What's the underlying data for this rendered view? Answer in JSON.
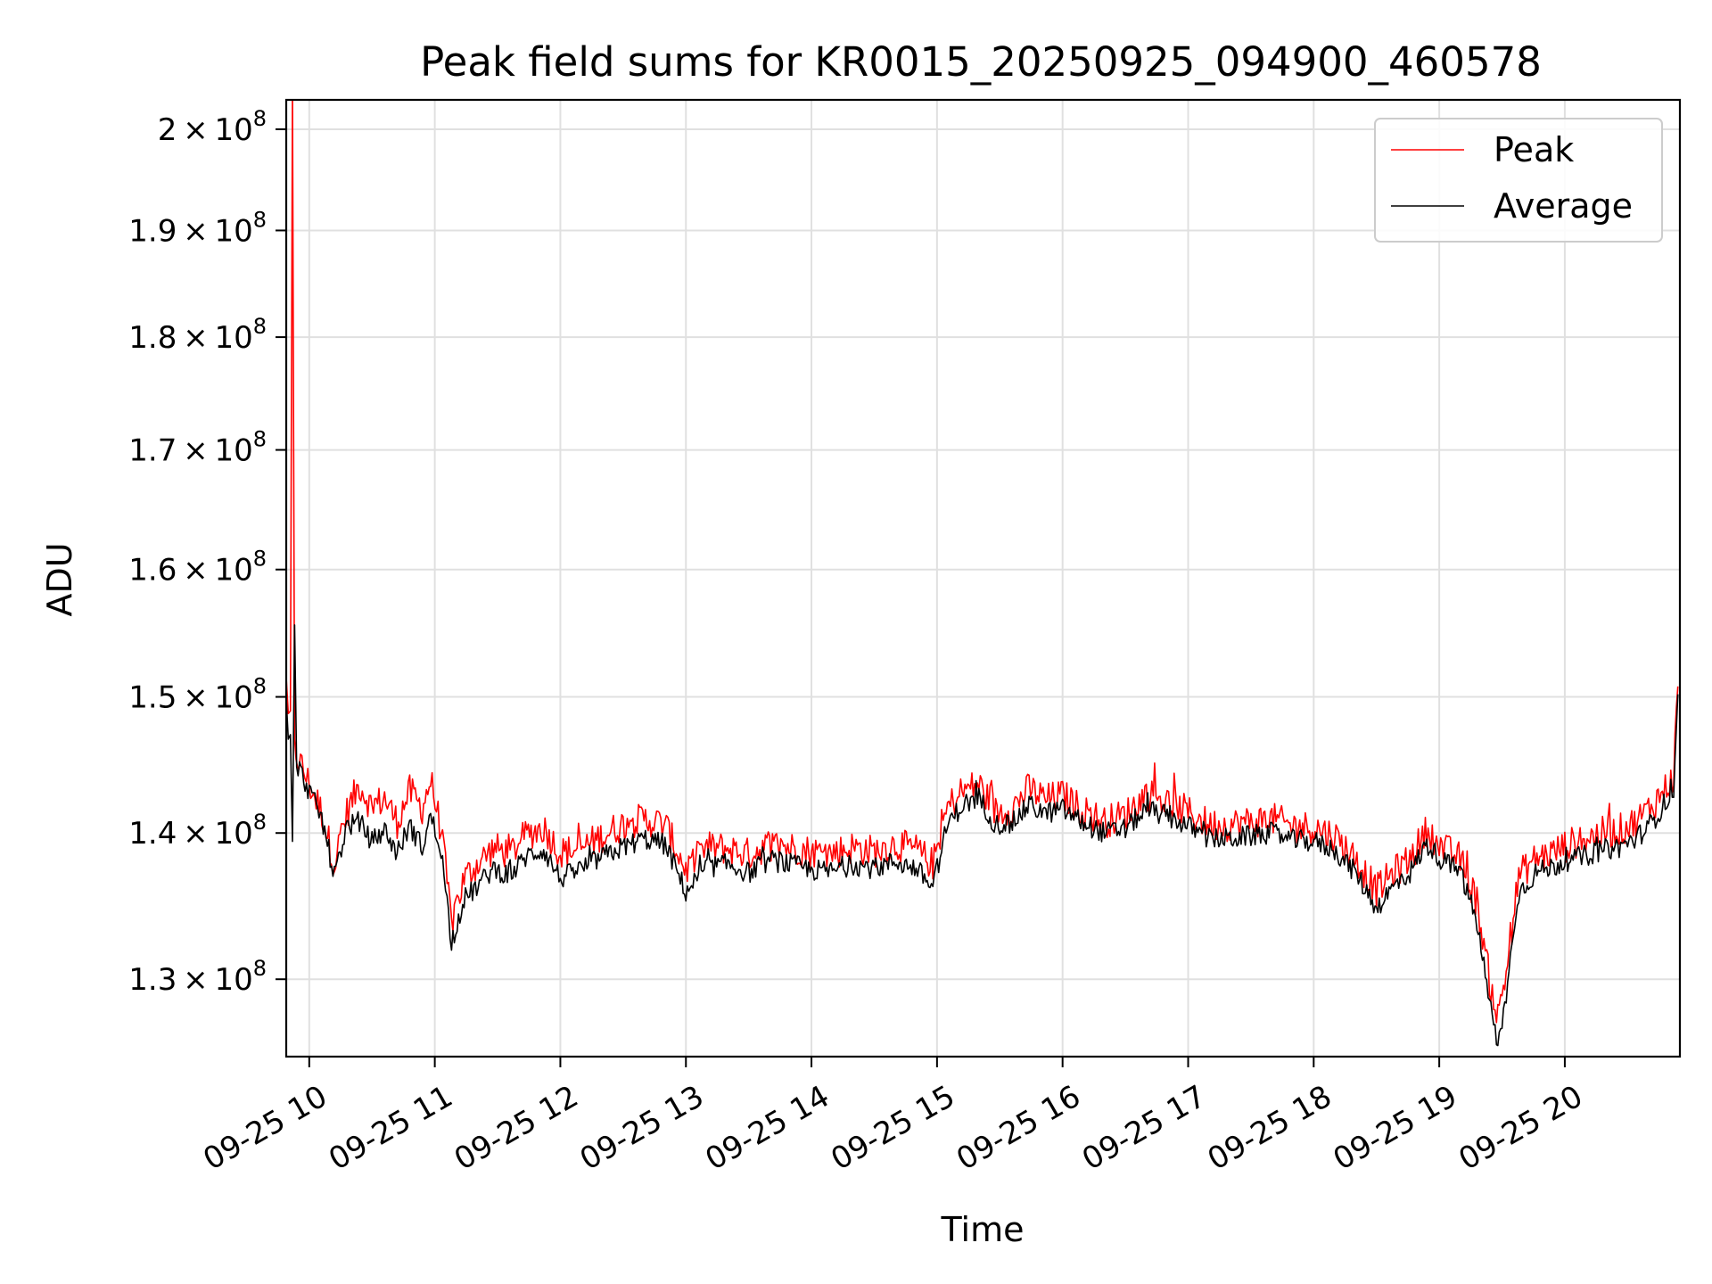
{
  "chart_data": {
    "type": "line",
    "title": "Peak field sums for KR0015_20250925_094900_460578",
    "xlabel": "Time",
    "ylabel": "ADU",
    "yscale": "log",
    "ylim": [
      125000000,
      203000000
    ],
    "xlim": [
      "2025-09-25 09:49",
      "2025-09-25 20:55"
    ],
    "grid": true,
    "legend": {
      "placement": "top-right",
      "entries": [
        "Peak",
        "Average"
      ]
    },
    "x_ticks": [
      {
        "value": "2025-09-25 10:00",
        "label": "09-25 10"
      },
      {
        "value": "2025-09-25 11:00",
        "label": "09-25 11"
      },
      {
        "value": "2025-09-25 12:00",
        "label": "09-25 12"
      },
      {
        "value": "2025-09-25 13:00",
        "label": "09-25 13"
      },
      {
        "value": "2025-09-25 14:00",
        "label": "09-25 14"
      },
      {
        "value": "2025-09-25 15:00",
        "label": "09-25 15"
      },
      {
        "value": "2025-09-25 16:00",
        "label": "09-25 16"
      },
      {
        "value": "2025-09-25 17:00",
        "label": "09-25 17"
      },
      {
        "value": "2025-09-25 18:00",
        "label": "09-25 18"
      },
      {
        "value": "2025-09-25 19:00",
        "label": "09-25 19"
      },
      {
        "value": "2025-09-25 20:00",
        "label": "09-25 20"
      }
    ],
    "y_ticks": [
      {
        "value": 200000000,
        "mantissa": "2",
        "exponent": "8"
      },
      {
        "value": 190000000,
        "mantissa": "1.9",
        "exponent": "8"
      },
      {
        "value": 180000000,
        "mantissa": "1.8",
        "exponent": "8"
      },
      {
        "value": 170000000,
        "mantissa": "1.7",
        "exponent": "8"
      },
      {
        "value": 160000000,
        "mantissa": "1.6",
        "exponent": "8"
      },
      {
        "value": 150000000,
        "mantissa": "1.5",
        "exponent": "8"
      },
      {
        "value": 140000000,
        "mantissa": "1.4",
        "exponent": "8"
      },
      {
        "value": 130000000,
        "mantissa": "1.3",
        "exponent": "8"
      }
    ],
    "series": [
      {
        "name": "Peak",
        "color": "#ff0000",
        "points": [
          [
            "2025-09-25 09:49",
            152000000
          ],
          [
            "2025-09-25 09:50",
            147500000
          ],
          [
            "2025-09-25 09:51",
            148500000
          ],
          [
            "2025-09-25 09:52",
            203000000
          ],
          [
            "2025-09-25 09:53",
            146000000
          ],
          [
            "2025-09-25 10:00",
            143500000
          ],
          [
            "2025-09-25 10:06",
            141500000
          ],
          [
            "2025-09-25 10:12",
            137800000
          ],
          [
            "2025-09-25 10:18",
            141500000
          ],
          [
            "2025-09-25 10:24",
            143500000
          ],
          [
            "2025-09-25 10:30",
            141800000
          ],
          [
            "2025-09-25 10:36",
            142500000
          ],
          [
            "2025-09-25 10:42",
            140800000
          ],
          [
            "2025-09-25 10:48",
            143000000
          ],
          [
            "2025-09-25 10:54",
            141800000
          ],
          [
            "2025-09-25 10:58",
            143800000
          ],
          [
            "2025-09-25 11:03",
            140200000
          ],
          [
            "2025-09-25 11:08",
            133800000
          ],
          [
            "2025-09-25 11:14",
            136800000
          ],
          [
            "2025-09-25 11:20",
            137800000
          ],
          [
            "2025-09-25 11:28",
            138900000
          ],
          [
            "2025-09-25 11:36",
            138600000
          ],
          [
            "2025-09-25 11:44",
            139900000
          ],
          [
            "2025-09-25 11:52",
            140400000
          ],
          [
            "2025-09-25 12:00",
            138600000
          ],
          [
            "2025-09-25 12:10",
            138900000
          ],
          [
            "2025-09-25 12:20",
            139800000
          ],
          [
            "2025-09-25 12:30",
            140600000
          ],
          [
            "2025-09-25 12:40",
            141000000
          ],
          [
            "2025-09-25 12:50",
            140600000
          ],
          [
            "2025-09-25 13:00",
            137400000
          ],
          [
            "2025-09-25 13:10",
            139000000
          ],
          [
            "2025-09-25 13:20",
            138900000
          ],
          [
            "2025-09-25 13:30",
            138500000
          ],
          [
            "2025-09-25 13:40",
            139200000
          ],
          [
            "2025-09-25 13:50",
            139000000
          ],
          [
            "2025-09-25 14:00",
            138700000
          ],
          [
            "2025-09-25 14:10",
            138600000
          ],
          [
            "2025-09-25 14:20",
            139000000
          ],
          [
            "2025-09-25 14:30",
            138700000
          ],
          [
            "2025-09-25 14:40",
            139200000
          ],
          [
            "2025-09-25 14:50",
            138800000
          ],
          [
            "2025-09-25 14:58",
            137800000
          ],
          [
            "2025-09-25 15:05",
            141800000
          ],
          [
            "2025-09-25 15:12",
            143000000
          ],
          [
            "2025-09-25 15:20",
            143500000
          ],
          [
            "2025-09-25 15:28",
            141500000
          ],
          [
            "2025-09-25 15:36",
            141800000
          ],
          [
            "2025-09-25 15:44",
            143200000
          ],
          [
            "2025-09-25 15:52",
            142400000
          ],
          [
            "2025-09-25 16:00",
            142700000
          ],
          [
            "2025-09-25 16:10",
            141600000
          ],
          [
            "2025-09-25 16:20",
            140800000
          ],
          [
            "2025-09-25 16:30",
            141300000
          ],
          [
            "2025-09-25 16:40",
            142800000
          ],
          [
            "2025-09-25 16:50",
            142200000
          ],
          [
            "2025-09-25 17:00",
            141500000
          ],
          [
            "2025-09-25 17:10",
            140600000
          ],
          [
            "2025-09-25 17:20",
            140600000
          ],
          [
            "2025-09-25 17:30",
            140800000
          ],
          [
            "2025-09-25 17:40",
            141000000
          ],
          [
            "2025-09-25 17:50",
            140500000
          ],
          [
            "2025-09-25 18:00",
            140400000
          ],
          [
            "2025-09-25 18:10",
            139800000
          ],
          [
            "2025-09-25 18:20",
            138200000
          ],
          [
            "2025-09-25 18:30",
            136000000
          ],
          [
            "2025-09-25 18:38",
            137200000
          ],
          [
            "2025-09-25 18:46",
            138200000
          ],
          [
            "2025-09-25 18:54",
            140200000
          ],
          [
            "2025-09-25 19:02",
            138900000
          ],
          [
            "2025-09-25 19:10",
            138200000
          ],
          [
            "2025-09-25 19:18",
            135200000
          ],
          [
            "2025-09-25 19:24",
            130000000
          ],
          [
            "2025-09-25 19:28",
            127500000
          ],
          [
            "2025-09-25 19:32",
            130500000
          ],
          [
            "2025-09-25 19:38",
            137000000
          ],
          [
            "2025-09-25 19:46",
            138200000
          ],
          [
            "2025-09-25 19:54",
            138600000
          ],
          [
            "2025-09-25 20:02",
            139200000
          ],
          [
            "2025-09-25 20:10",
            139600000
          ],
          [
            "2025-09-25 20:18",
            140000000
          ],
          [
            "2025-09-25 20:26",
            140200000
          ],
          [
            "2025-09-25 20:34",
            140800000
          ],
          [
            "2025-09-25 20:42",
            142000000
          ],
          [
            "2025-09-25 20:48",
            143200000
          ],
          [
            "2025-09-25 20:52",
            144000000
          ],
          [
            "2025-09-25 20:54",
            150800000
          ]
        ]
      },
      {
        "name": "Average",
        "color": "#000000",
        "points": [
          [
            "2025-09-25 09:49",
            149500000
          ],
          [
            "2025-09-25 09:50",
            146500000
          ],
          [
            "2025-09-25 09:51",
            147200000
          ],
          [
            "2025-09-25 09:52",
            139000000
          ],
          [
            "2025-09-25 09:53",
            155000000
          ],
          [
            "2025-09-25 09:54",
            145000000
          ],
          [
            "2025-09-25 10:00",
            143000000
          ],
          [
            "2025-09-25 10:06",
            141000000
          ],
          [
            "2025-09-25 10:12",
            137000000
          ],
          [
            "2025-09-25 10:18",
            140500000
          ],
          [
            "2025-09-25 10:24",
            140800000
          ],
          [
            "2025-09-25 10:30",
            139400000
          ],
          [
            "2025-09-25 10:36",
            140200000
          ],
          [
            "2025-09-25 10:42",
            138600000
          ],
          [
            "2025-09-25 10:48",
            140500000
          ],
          [
            "2025-09-25 10:54",
            139000000
          ],
          [
            "2025-09-25 10:58",
            141200000
          ],
          [
            "2025-09-25 11:03",
            138800000
          ],
          [
            "2025-09-25 11:08",
            132500000
          ],
          [
            "2025-09-25 11:14",
            135400000
          ],
          [
            "2025-09-25 11:20",
            136200000
          ],
          [
            "2025-09-25 11:28",
            137500000
          ],
          [
            "2025-09-25 11:36",
            137000000
          ],
          [
            "2025-09-25 11:44",
            138400000
          ],
          [
            "2025-09-25 11:52",
            138800000
          ],
          [
            "2025-09-25 12:00",
            136800000
          ],
          [
            "2025-09-25 12:10",
            137500000
          ],
          [
            "2025-09-25 12:20",
            138300000
          ],
          [
            "2025-09-25 12:30",
            139000000
          ],
          [
            "2025-09-25 12:40",
            139600000
          ],
          [
            "2025-09-25 12:50",
            139200000
          ],
          [
            "2025-09-25 13:00",
            135900000
          ],
          [
            "2025-09-25 13:10",
            137600000
          ],
          [
            "2025-09-25 13:20",
            137800000
          ],
          [
            "2025-09-25 13:30",
            137200000
          ],
          [
            "2025-09-25 13:40",
            138100000
          ],
          [
            "2025-09-25 13:50",
            137800000
          ],
          [
            "2025-09-25 14:00",
            137400000
          ],
          [
            "2025-09-25 14:10",
            137300000
          ],
          [
            "2025-09-25 14:20",
            137800000
          ],
          [
            "2025-09-25 14:30",
            137500000
          ],
          [
            "2025-09-25 14:40",
            138000000
          ],
          [
            "2025-09-25 14:50",
            137500000
          ],
          [
            "2025-09-25 14:58",
            136200000
          ],
          [
            "2025-09-25 15:05",
            140600000
          ],
          [
            "2025-09-25 15:12",
            142000000
          ],
          [
            "2025-09-25 15:20",
            142500000
          ],
          [
            "2025-09-25 15:28",
            140600000
          ],
          [
            "2025-09-25 15:36",
            140700000
          ],
          [
            "2025-09-25 15:44",
            142000000
          ],
          [
            "2025-09-25 15:52",
            141400000
          ],
          [
            "2025-09-25 16:00",
            141700000
          ],
          [
            "2025-09-25 16:10",
            140700000
          ],
          [
            "2025-09-25 16:20",
            140000000
          ],
          [
            "2025-09-25 16:30",
            140300000
          ],
          [
            "2025-09-25 16:40",
            141700000
          ],
          [
            "2025-09-25 16:50",
            141200000
          ],
          [
            "2025-09-25 17:00",
            140500000
          ],
          [
            "2025-09-25 17:10",
            139600000
          ],
          [
            "2025-09-25 17:20",
            139600000
          ],
          [
            "2025-09-25 17:30",
            139800000
          ],
          [
            "2025-09-25 17:40",
            140000000
          ],
          [
            "2025-09-25 17:50",
            139500000
          ],
          [
            "2025-09-25 18:00",
            139400000
          ],
          [
            "2025-09-25 18:10",
            138800000
          ],
          [
            "2025-09-25 18:20",
            137200000
          ],
          [
            "2025-09-25 18:30",
            134800000
          ],
          [
            "2025-09-25 18:38",
            136200000
          ],
          [
            "2025-09-25 18:46",
            137200000
          ],
          [
            "2025-09-25 18:54",
            139200000
          ],
          [
            "2025-09-25 19:02",
            138000000
          ],
          [
            "2025-09-25 19:10",
            137300000
          ],
          [
            "2025-09-25 19:18",
            133800000
          ],
          [
            "2025-09-25 19:24",
            128500000
          ],
          [
            "2025-09-25 19:28",
            125500000
          ],
          [
            "2025-09-25 19:32",
            129000000
          ],
          [
            "2025-09-25 19:38",
            135800000
          ],
          [
            "2025-09-25 19:46",
            137200000
          ],
          [
            "2025-09-25 19:54",
            137600000
          ],
          [
            "2025-09-25 20:02",
            138100000
          ],
          [
            "2025-09-25 20:10",
            138400000
          ],
          [
            "2025-09-25 20:18",
            138800000
          ],
          [
            "2025-09-25 20:26",
            139000000
          ],
          [
            "2025-09-25 20:34",
            139600000
          ],
          [
            "2025-09-25 20:42",
            140800000
          ],
          [
            "2025-09-25 20:48",
            142200000
          ],
          [
            "2025-09-25 20:52",
            143000000
          ],
          [
            "2025-09-25 20:54",
            150200000
          ]
        ]
      }
    ]
  }
}
